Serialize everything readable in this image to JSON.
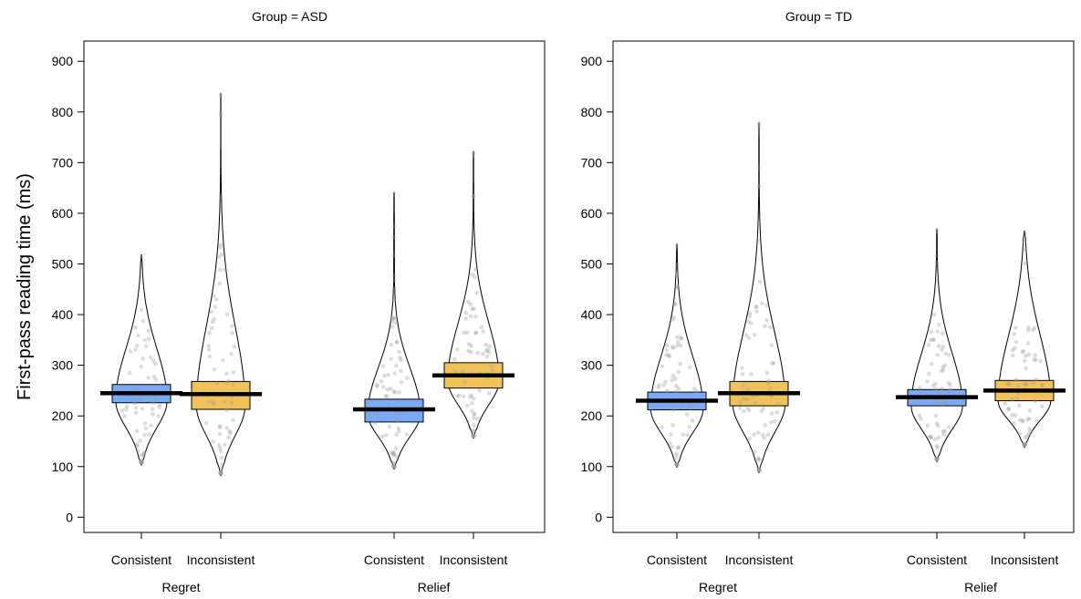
{
  "chart_data": {
    "type": "pirate-violin",
    "ylabel": "First-pass reading time (ms)",
    "ylim": [
      -30,
      940
    ],
    "yticks": [
      0,
      100,
      200,
      300,
      400,
      500,
      600,
      700,
      800,
      900
    ],
    "colors": {
      "Consistent": "#7aaaf5",
      "Inconsistent": "#f2c25a",
      "mean_line": "#000000",
      "points": "#9a9a9a"
    },
    "panels": [
      {
        "title": "Group = ASD",
        "groups": [
          {
            "label": "Regret",
            "items": [
              {
                "condition": "Consistent",
                "mean": 245,
                "ci_low": 226,
                "ci_high": 262,
                "min": 103,
                "max": 518,
                "bulk_center": 230,
                "bulk_width": 0.78
              },
              {
                "condition": "Inconsistent",
                "mean": 243,
                "ci_low": 213,
                "ci_high": 268,
                "min": 82,
                "max": 838,
                "bulk_center": 220,
                "bulk_width": 0.74
              }
            ]
          },
          {
            "label": "Relief",
            "items": [
              {
                "condition": "Consistent",
                "mean": 213,
                "ci_low": 188,
                "ci_high": 233,
                "min": 95,
                "max": 642,
                "bulk_center": 205,
                "bulk_width": 0.8
              },
              {
                "condition": "Inconsistent",
                "mean": 280,
                "ci_low": 255,
                "ci_high": 305,
                "min": 156,
                "max": 723,
                "bulk_center": 270,
                "bulk_width": 0.78
              }
            ]
          }
        ]
      },
      {
        "title": "Group = TD",
        "groups": [
          {
            "label": "Regret",
            "items": [
              {
                "condition": "Consistent",
                "mean": 230,
                "ci_low": 212,
                "ci_high": 247,
                "min": 99,
                "max": 540,
                "bulk_center": 215,
                "bulk_width": 0.8
              },
              {
                "condition": "Inconsistent",
                "mean": 245,
                "ci_low": 220,
                "ci_high": 268,
                "min": 88,
                "max": 780,
                "bulk_center": 225,
                "bulk_width": 0.8
              }
            ]
          },
          {
            "label": "Relief",
            "items": [
              {
                "condition": "Consistent",
                "mean": 237,
                "ci_low": 220,
                "ci_high": 252,
                "min": 110,
                "max": 570,
                "bulk_center": 220,
                "bulk_width": 0.78
              },
              {
                "condition": "Inconsistent",
                "mean": 250,
                "ci_low": 230,
                "ci_high": 270,
                "min": 138,
                "max": 565,
                "bulk_center": 230,
                "bulk_width": 0.8
              }
            ]
          }
        ]
      }
    ]
  }
}
